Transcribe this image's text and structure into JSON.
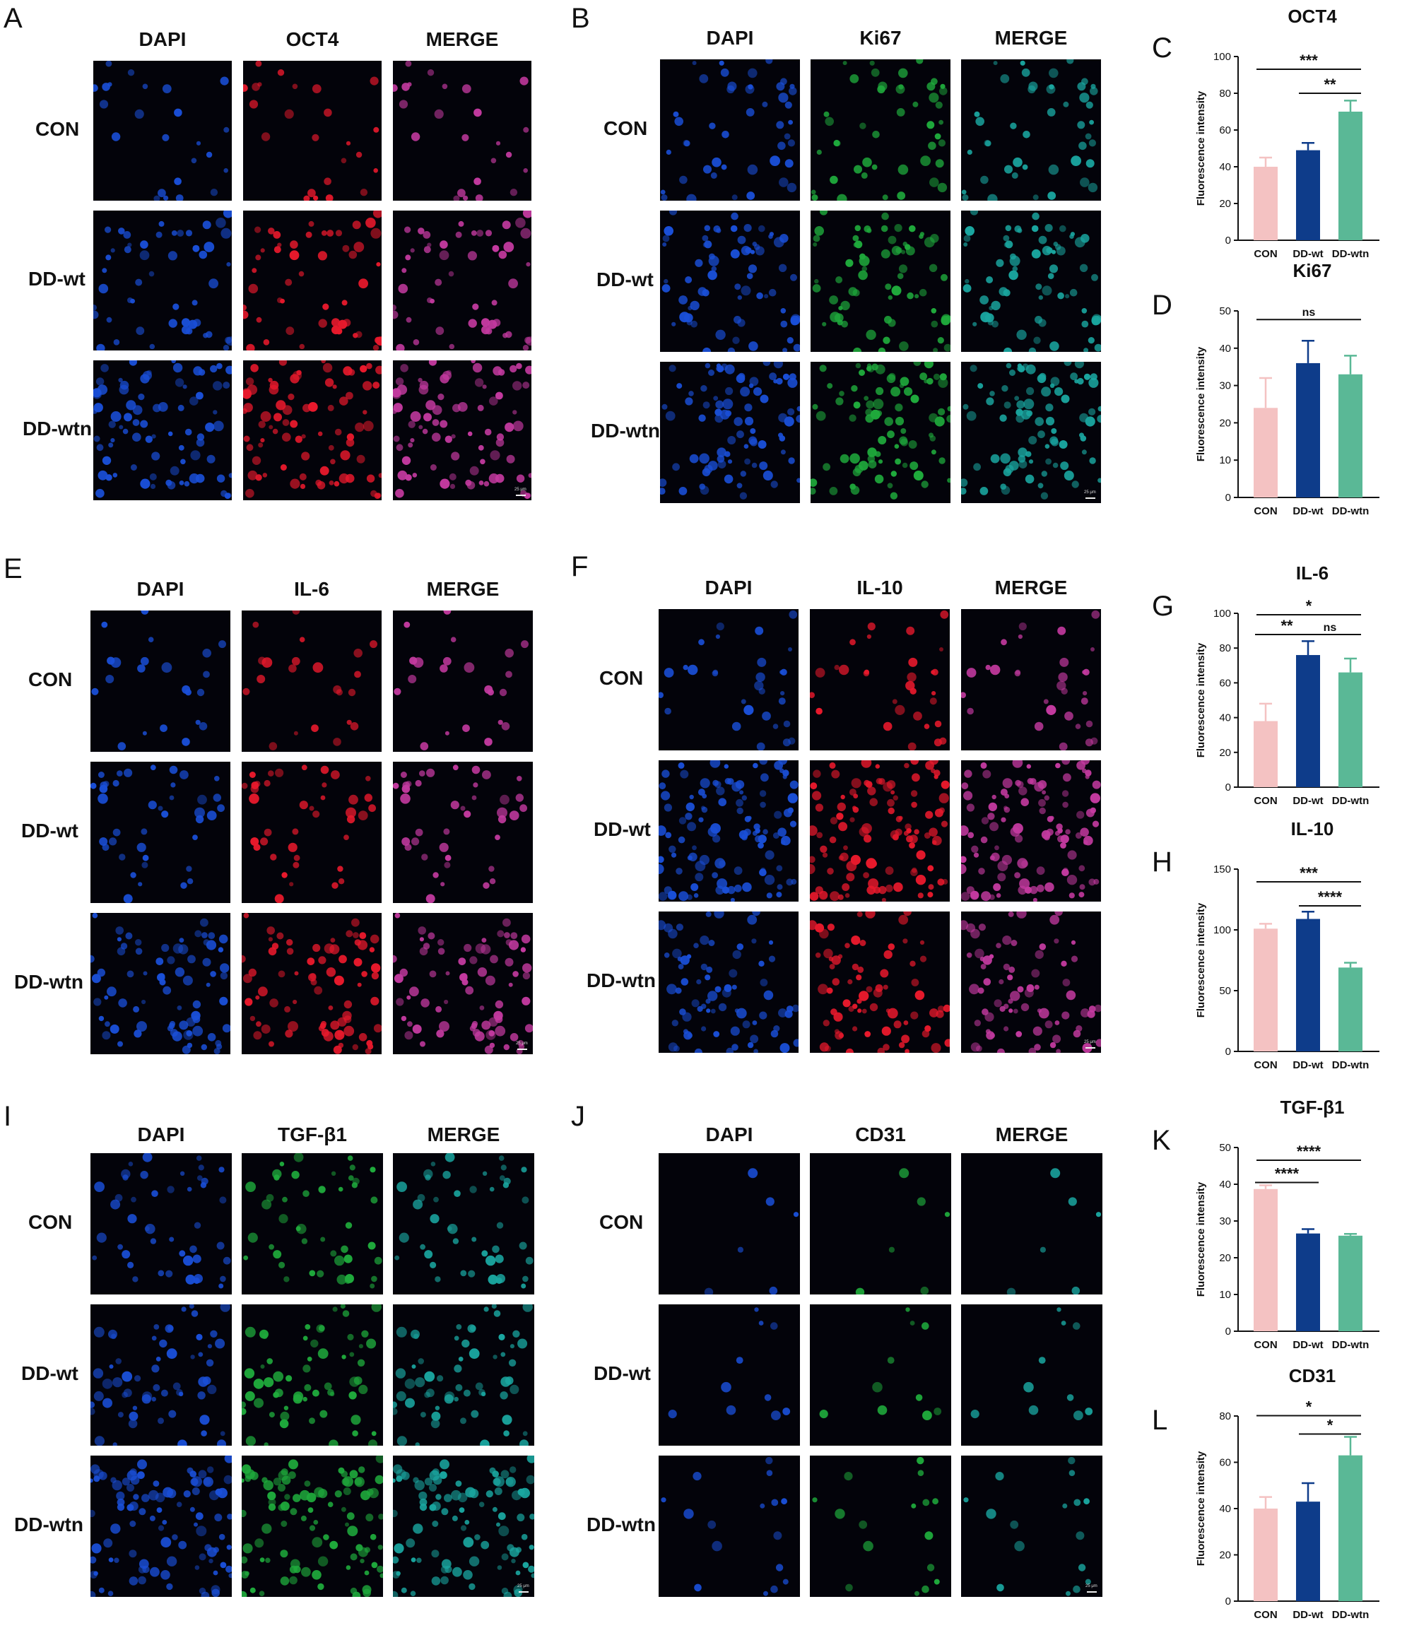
{
  "microscopy_panels": [
    {
      "letter": "A",
      "columns": [
        "DAPI",
        "OCT4",
        "MERGE"
      ],
      "rows": [
        "CON",
        "DD-wt",
        "DD-wtn"
      ],
      "stain": "red",
      "density": [
        24,
        50,
        80
      ],
      "scalebar": "25 μm"
    },
    {
      "letter": "B",
      "columns": [
        "DAPI",
        "Ki67",
        "MERGE"
      ],
      "rows": [
        "CON",
        "DD-wt",
        "DD-wtn"
      ],
      "stain": "green",
      "density": [
        45,
        70,
        85
      ],
      "scalebar": "25 μm"
    },
    {
      "letter": "E",
      "columns": [
        "DAPI",
        "IL-6",
        "MERGE"
      ],
      "rows": [
        "CON",
        "DD-wt",
        "DD-wtn"
      ],
      "stain": "red",
      "density": [
        22,
        40,
        75
      ],
      "scalebar": "25 μm"
    },
    {
      "letter": "F",
      "columns": [
        "DAPI",
        "IL-10",
        "MERGE"
      ],
      "rows": [
        "CON",
        "DD-wt",
        "DD-wtn"
      ],
      "stain": "red",
      "density": [
        30,
        110,
        75
      ],
      "scalebar": "25 μm"
    },
    {
      "letter": "I",
      "columns": [
        "DAPI",
        "TGF-β1",
        "MERGE"
      ],
      "rows": [
        "CON",
        "DD-wt",
        "DD-wtn"
      ],
      "stain": "green",
      "density": [
        45,
        60,
        95
      ],
      "scalebar": "25 μm"
    },
    {
      "letter": "J",
      "columns": [
        "DAPI",
        "CD31",
        "MERGE"
      ],
      "rows": [
        "CON",
        "DD-wt",
        "DD-wtn"
      ],
      "stain": "green",
      "density": [
        6,
        10,
        16
      ],
      "scalebar": "25 μm"
    }
  ],
  "chart_data": [
    {
      "letter": "C",
      "type": "bar",
      "title": "OCT4",
      "ylabel": "Fluorescence intensity",
      "categories": [
        "CON",
        "DD-wt",
        "DD-wtn"
      ],
      "values": [
        40,
        49,
        70
      ],
      "errors": [
        5,
        4,
        6
      ],
      "ylim": [
        0,
        100
      ],
      "yticks": [
        0,
        20,
        40,
        60,
        80,
        100
      ],
      "significance": [
        {
          "from": 0,
          "to": 2,
          "label": "***"
        },
        {
          "from": 1,
          "to": 2,
          "label": "**"
        }
      ]
    },
    {
      "letter": "D",
      "type": "bar",
      "title": "Ki67",
      "ylabel": "Fluorescence intensity",
      "categories": [
        "CON",
        "DD-wt",
        "DD-wtn"
      ],
      "values": [
        24,
        36,
        33
      ],
      "errors": [
        8,
        6,
        5
      ],
      "ylim": [
        0,
        50
      ],
      "yticks": [
        0,
        10,
        20,
        30,
        40,
        50
      ],
      "significance": [
        {
          "from": 0,
          "to": 2,
          "label": "ns"
        }
      ]
    },
    {
      "letter": "G",
      "type": "bar",
      "title": "IL-6",
      "ylabel": "Fluorescence intensity",
      "categories": [
        "CON",
        "DD-wt",
        "DD-wtn"
      ],
      "values": [
        38,
        76,
        66
      ],
      "errors": [
        10,
        8,
        8
      ],
      "ylim": [
        0,
        100
      ],
      "yticks": [
        0,
        20,
        40,
        60,
        80,
        100
      ],
      "significance": [
        {
          "from": 0,
          "to": 2,
          "label": "*"
        },
        {
          "from": 0,
          "to": 1,
          "label": "**"
        },
        {
          "from": 1,
          "to": 2,
          "label": "ns"
        }
      ]
    },
    {
      "letter": "H",
      "type": "bar",
      "title": "IL-10",
      "ylabel": "Fluorescence intensity",
      "categories": [
        "CON",
        "DD-wt",
        "DD-wtn"
      ],
      "values": [
        101,
        109,
        69
      ],
      "errors": [
        4,
        6,
        4
      ],
      "ylim": [
        0,
        150
      ],
      "yticks": [
        0,
        50,
        100,
        150
      ],
      "significance": [
        {
          "from": 0,
          "to": 2,
          "label": "***"
        },
        {
          "from": 1,
          "to": 2,
          "label": "****"
        }
      ]
    },
    {
      "letter": "K",
      "type": "bar",
      "title": "TGF-β1",
      "ylabel": "Fluorescence intensity",
      "categories": [
        "CON",
        "DD-wt",
        "DD-wtn"
      ],
      "values": [
        38.7,
        26.6,
        26
      ],
      "errors": [
        1,
        1.2,
        0.5
      ],
      "ylim": [
        0,
        50
      ],
      "yticks": [
        0,
        10,
        20,
        30,
        40,
        50
      ],
      "significance": [
        {
          "from": 0,
          "to": 2,
          "label": "****"
        },
        {
          "from": 0,
          "to": 1,
          "label": "****"
        }
      ]
    },
    {
      "letter": "L",
      "type": "bar",
      "title": "CD31",
      "ylabel": "Fluorescence intensity",
      "categories": [
        "CON",
        "DD-wt",
        "DD-wtn"
      ],
      "values": [
        40,
        43,
        63
      ],
      "errors": [
        5,
        8,
        8
      ],
      "ylim": [
        0,
        80
      ],
      "yticks": [
        0,
        20,
        40,
        60,
        80
      ],
      "significance": [
        {
          "from": 0,
          "to": 2,
          "label": "*"
        },
        {
          "from": 1,
          "to": 2,
          "label": "*"
        }
      ]
    }
  ],
  "colors": {
    "con": "#f4c2c2",
    "ddwt": "#0e3c8a",
    "ddwtn": "#5ab896",
    "dapi": "#1a4fd8",
    "red": "#e8192c",
    "green": "#1faa3c",
    "merge_red": "#c43aa0",
    "merge_green": "#1aa6a0"
  }
}
